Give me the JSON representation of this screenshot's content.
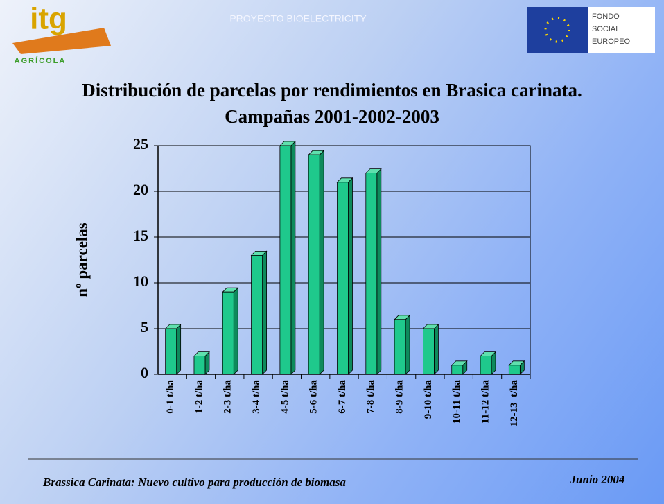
{
  "header": {
    "project": "PROYECTO BIOELECTRICITY",
    "logo_mark": "itg",
    "logo_text": "AGRÍCOLA",
    "eu_text": [
      "FONDO",
      "SOCIAL",
      "EUROPEO"
    ]
  },
  "chart_data": {
    "type": "bar",
    "title": "Distribución de parcelas por rendimientos en Brasica carinata.",
    "subtitle": "Campañas 2001-2002-2003",
    "y_label": "nº parcelas",
    "categories": [
      "0-1 t/ha",
      "1-2 t/ha",
      "2-3 t/ha",
      "3-4 t/ha",
      "4-5 t/ha",
      "5-6 t/ha",
      "6-7 t/ha",
      "7-8 t/ha",
      "8-9 t/ha",
      "9-10 t/ha",
      "10-11 t/ha",
      "11-12 t/ha",
      "12-13  t/ha"
    ],
    "values": [
      5,
      2,
      9,
      13,
      25,
      24,
      21,
      22,
      6,
      5,
      1,
      2,
      1
    ],
    "color": "#1fc98c",
    "ylim": [
      0,
      25
    ],
    "yticks": [
      0,
      5,
      10,
      15,
      20,
      25
    ],
    "grid": true
  },
  "footer": {
    "left": "Brassica Carinata: Nuevo cultivo para producción de biomasa",
    "right": "Junio 2004"
  }
}
